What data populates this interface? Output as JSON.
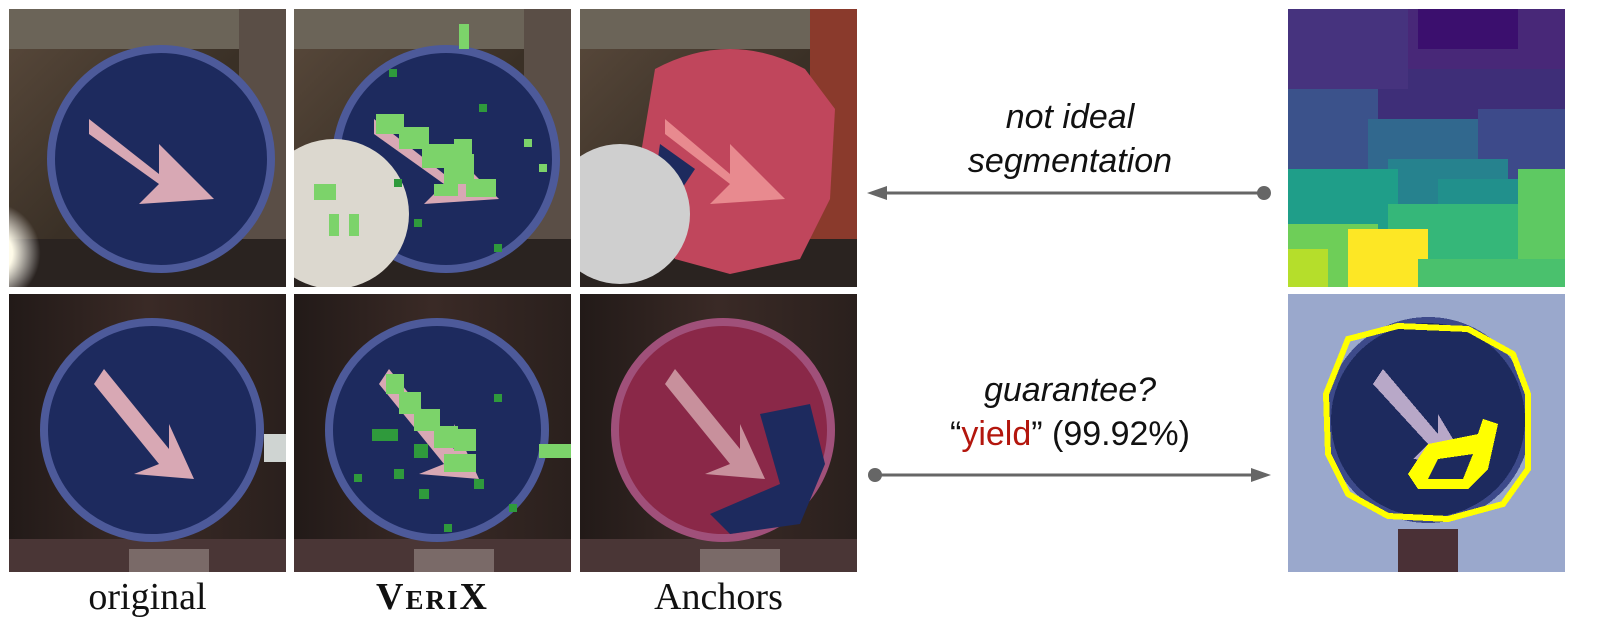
{
  "labels": {
    "original": "original",
    "verix": "VeriX",
    "anchors": "Anchors"
  },
  "notes": {
    "top_line1": "not ideal",
    "top_line2": "segmentation",
    "bottom_line1": "guarantee?",
    "open_quote": "“",
    "predicted_class": "yield",
    "close_quote": "”",
    "confidence": "(99.92%)"
  },
  "colors": {
    "sign_blue": "#1d2a5e",
    "sign_rim": "#4d5a9a",
    "arrow_pink": "#d8a8b4",
    "verix_green": "#7cd36a",
    "verix_dark_green": "#2f9a3c",
    "anchors_red": "#c0465c",
    "highlight_yellow": "#ffff00",
    "pointer_gray": "#666666",
    "emphasis_red": "#b3160d"
  },
  "icons": {
    "top_pointer": "left-arrow-with-dot",
    "bottom_pointer": "right-arrow-with-dot"
  }
}
